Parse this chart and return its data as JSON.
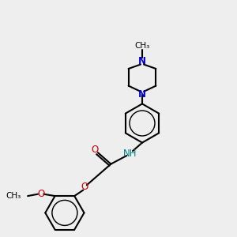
{
  "bg_color": "#eeeeee",
  "line_color": "#000000",
  "N_color": "#0000cc",
  "O_color": "#cc0000",
  "NH_color": "#008080",
  "bond_lw": 1.5,
  "fig_size": [
    3.0,
    3.0
  ],
  "dpi": 100,
  "xlim": [
    0,
    10
  ],
  "ylim": [
    0,
    10
  ]
}
